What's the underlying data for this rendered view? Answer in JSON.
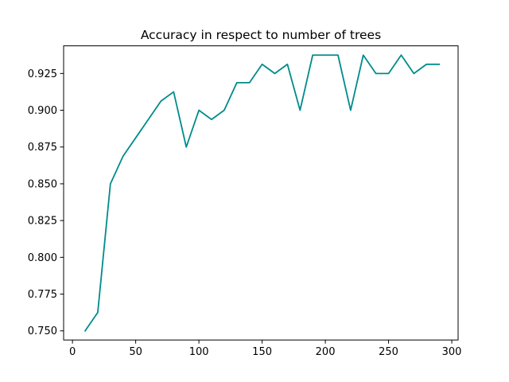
{
  "chart_data": {
    "type": "line",
    "title": "Accuracy in respect to number of trees",
    "xlabel": "",
    "ylabel": "",
    "xlim": [
      -7,
      305
    ],
    "ylim": [
      0.7438,
      0.9438
    ],
    "x_ticks": [
      0,
      50,
      100,
      150,
      200,
      250,
      300
    ],
    "y_ticks": [
      0.75,
      0.775,
      0.8,
      0.825,
      0.85,
      0.875,
      0.9,
      0.925
    ],
    "x_tick_labels": [
      "0",
      "50",
      "100",
      "150",
      "200",
      "250",
      "300"
    ],
    "y_tick_labels": [
      "0.750",
      "0.775",
      "0.800",
      "0.825",
      "0.850",
      "0.875",
      "0.900",
      "0.925"
    ],
    "grid": false,
    "series": [
      {
        "color": "#008b8b",
        "x": [
          10,
          20,
          30,
          40,
          50,
          60,
          70,
          80,
          90,
          100,
          110,
          120,
          130,
          140,
          150,
          160,
          170,
          180,
          190,
          200,
          210,
          220,
          230,
          240,
          250,
          260,
          270,
          280,
          290
        ],
        "values": [
          0.75,
          0.7625,
          0.85,
          0.86875,
          0.88125,
          0.89375,
          0.90625,
          0.9125,
          0.875,
          0.9,
          0.89375,
          0.9,
          0.91875,
          0.91875,
          0.93125,
          0.925,
          0.93125,
          0.9,
          0.9375,
          0.9375,
          0.9375,
          0.9,
          0.9375,
          0.925,
          0.925,
          0.9375,
          0.925,
          0.93125,
          0.93125
        ]
      }
    ]
  }
}
